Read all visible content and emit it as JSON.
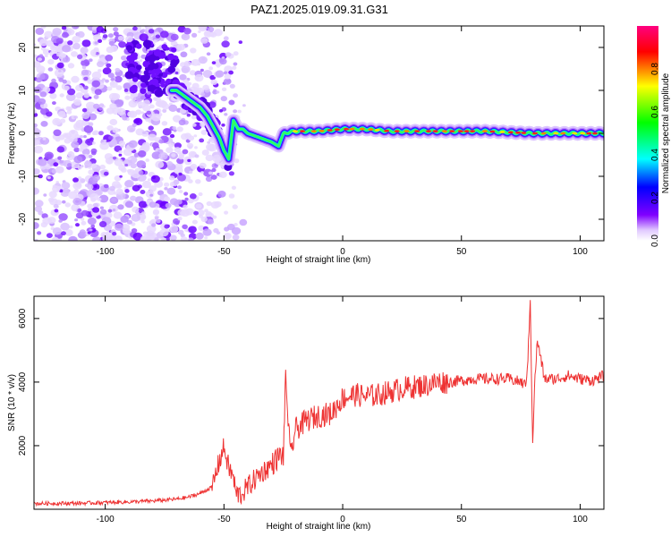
{
  "title": "PAZ1.2025.019.09.31.G31",
  "chart_data": [
    {
      "type": "heatmap",
      "xlabel": "Height of straight line (km)",
      "ylabel": "Frequency (Hz)",
      "xlim": [
        -130,
        110
      ],
      "ylim": [
        -25,
        25
      ],
      "xticks": [
        -100,
        -50,
        0,
        50,
        100
      ],
      "yticks": [
        -20,
        -10,
        0,
        10,
        20
      ],
      "ridge": {
        "x": [
          -70,
          -65,
          -60,
          -57,
          -55,
          -52,
          -50,
          -48,
          -46,
          -44,
          -42,
          -40,
          -35,
          -30,
          -27,
          -25,
          -20,
          -10,
          0,
          10,
          20,
          40,
          60,
          80,
          100,
          110
        ],
        "y": [
          10,
          8,
          6,
          4,
          2,
          -1,
          -4,
          -6,
          3,
          1,
          1,
          0,
          -1,
          -2,
          -3,
          0,
          0.5,
          0.5,
          1,
          1,
          0.5,
          0.5,
          0.5,
          0,
          0,
          0
        ]
      },
      "colorbar": {
        "label": "Normalized spectral amplitude",
        "ticks": [
          "0.0",
          "0.2",
          "0.4",
          "0.6",
          "0.8"
        ],
        "range": [
          0,
          1
        ],
        "colors": [
          "#ffffff",
          "#8000ff",
          "#0000ff",
          "#00ffff",
          "#00ff00",
          "#ffff00",
          "#ff0000",
          "#ff0080"
        ]
      }
    },
    {
      "type": "line",
      "xlabel": "Height of straight line (km)",
      "ylabel": "SNR (10 * v/v)",
      "xlim": [
        -130,
        110
      ],
      "ylim": [
        0,
        6700
      ],
      "xticks": [
        -100,
        -50,
        0,
        50,
        100
      ],
      "yticks": [
        2000,
        4000,
        6000
      ],
      "color": "#ee3333",
      "series": [
        {
          "x": [
            -130,
            -110,
            -90,
            -80,
            -70,
            -65,
            -60,
            -55,
            -52,
            -50,
            -48,
            -46,
            -45,
            -43,
            -40,
            -35,
            -30,
            -27,
            -25,
            -24,
            -22,
            -20,
            -15,
            -10,
            -5,
            0,
            5,
            10,
            15,
            20,
            25,
            30,
            35,
            40,
            45,
            50,
            55,
            60,
            65,
            70,
            75,
            77,
            78,
            79,
            80,
            81,
            82,
            85,
            90,
            95,
            100,
            105,
            110
          ],
          "y": [
            180,
            190,
            230,
            260,
            320,
            380,
            500,
            700,
            1500,
            1950,
            1300,
            1000,
            500,
            450,
            700,
            1100,
            1400,
            1650,
            1700,
            4150,
            1600,
            2500,
            2800,
            2950,
            3000,
            3500,
            3600,
            3550,
            3600,
            3700,
            3800,
            3850,
            3900,
            4000,
            4000,
            4050,
            4100,
            4100,
            4100,
            4100,
            4000,
            3900,
            4700,
            6600,
            2100,
            4200,
            5300,
            4100,
            4100,
            4200,
            4100,
            4050,
            4200
          ]
        }
      ]
    }
  ]
}
